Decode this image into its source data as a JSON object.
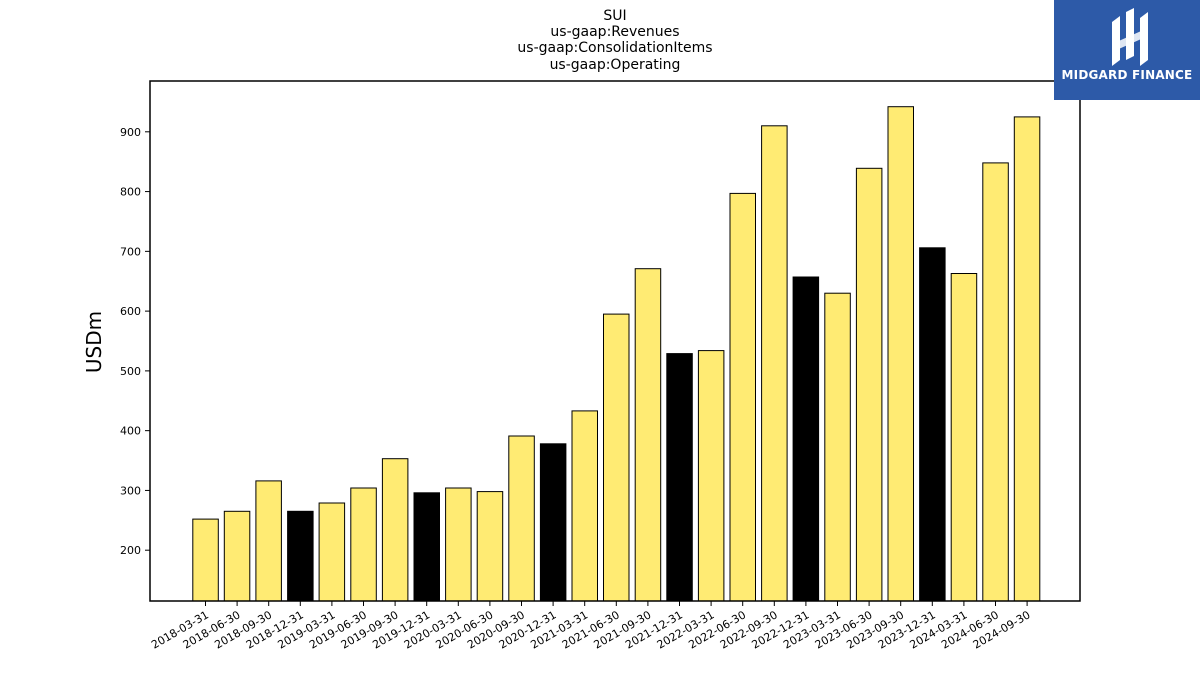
{
  "brand": {
    "name": "MIDGARD FINANCE",
    "bg_color": "#2d5aa8"
  },
  "colors": {
    "bar_default": "#ffeb73",
    "bar_q4": "#000000",
    "edge": "#000000"
  },
  "chart_data": {
    "type": "bar",
    "title_lines": [
      "SUI",
      "us-gaap:Revenues",
      "us-gaap:ConsolidationItems",
      "us-gaap:Operating"
    ],
    "ylabel": "USDm",
    "xlabel": "",
    "ylim": [
      115,
      985
    ],
    "yticks": [
      200,
      300,
      400,
      500,
      600,
      700,
      800,
      900
    ],
    "categories": [
      "2018-03-31",
      "2018-06-30",
      "2018-09-30",
      "2018-12-31",
      "2019-03-31",
      "2019-06-30",
      "2019-09-30",
      "2019-12-31",
      "2020-03-31",
      "2020-06-30",
      "2020-09-30",
      "2020-12-31",
      "2021-03-31",
      "2021-06-30",
      "2021-09-30",
      "2021-12-31",
      "2022-03-31",
      "2022-06-30",
      "2022-09-30",
      "2022-12-31",
      "2023-03-31",
      "2023-06-30",
      "2023-09-30",
      "2023-12-31",
      "2024-03-31",
      "2024-06-30",
      "2024-09-30"
    ],
    "values": [
      252,
      265,
      316,
      265,
      279,
      304,
      353,
      296,
      304,
      298,
      391,
      378,
      433,
      595,
      671,
      529,
      534,
      797,
      910,
      657,
      630,
      839,
      942,
      706,
      663,
      848,
      925
    ],
    "grid": false
  }
}
